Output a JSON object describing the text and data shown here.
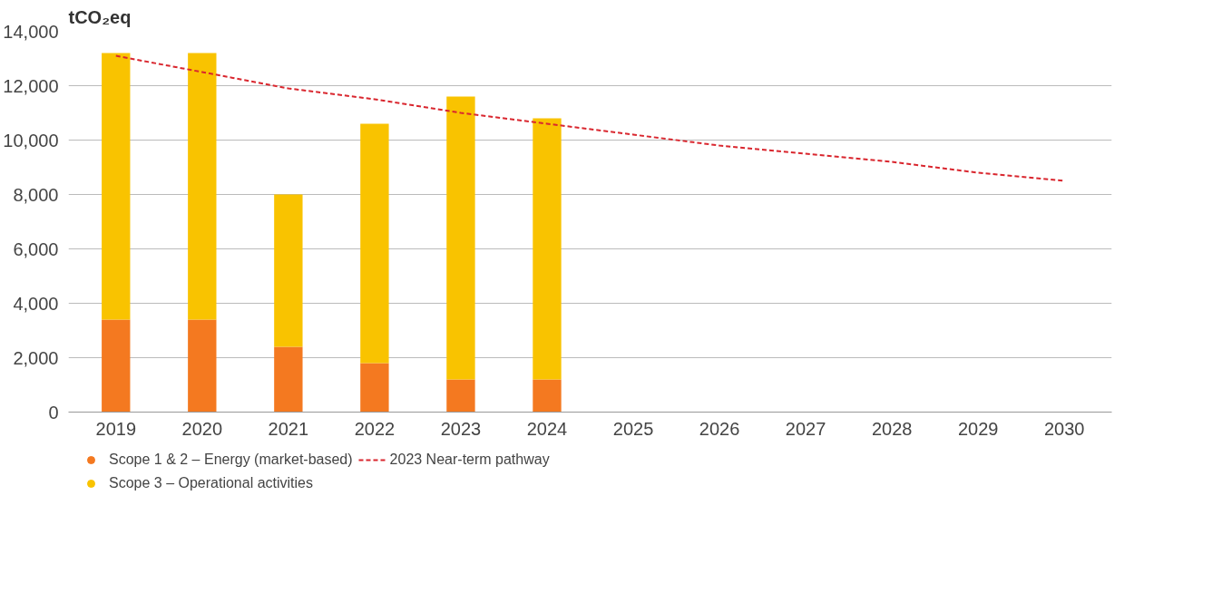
{
  "chart_data": {
    "type": "bar",
    "stacked": true,
    "ylabel": "tCO₂eq",
    "categories": [
      "2019",
      "2020",
      "2021",
      "2022",
      "2023",
      "2024",
      "2025",
      "2026",
      "2027",
      "2028",
      "2029",
      "2030"
    ],
    "series": [
      {
        "name": "Scope 1 & 2 – Energy (market-based)",
        "color": "#f47920",
        "values": [
          3400,
          3400,
          2400,
          1800,
          1200,
          1200,
          null,
          null,
          null,
          null,
          null,
          null
        ]
      },
      {
        "name": "Scope 3 – Operational activities",
        "color": "#f9c300",
        "values": [
          9800,
          9800,
          5600,
          8800,
          10400,
          9600,
          null,
          null,
          null,
          null,
          null,
          null
        ]
      },
      {
        "name": "2023 Near-term pathway",
        "type": "line",
        "line_style": "dashed",
        "color": "#d9262e",
        "values": [
          13100,
          12500,
          11900,
          11500,
          11000,
          10600,
          10200,
          9800,
          9500,
          9200,
          8800,
          8500
        ]
      }
    ],
    "ylim": [
      0,
      14000
    ],
    "yticks": [
      {
        "value": 0,
        "label": "0"
      },
      {
        "value": 2000,
        "label": "2,000"
      },
      {
        "value": 4000,
        "label": "4,000"
      },
      {
        "value": 6000,
        "label": "6,000"
      },
      {
        "value": 8000,
        "label": "8,000"
      },
      {
        "value": 10000,
        "label": "10,000"
      },
      {
        "value": 12000,
        "label": "12,000"
      },
      {
        "value": 14000,
        "label": "14,000"
      }
    ],
    "grid": "y",
    "legend": "bottom"
  }
}
